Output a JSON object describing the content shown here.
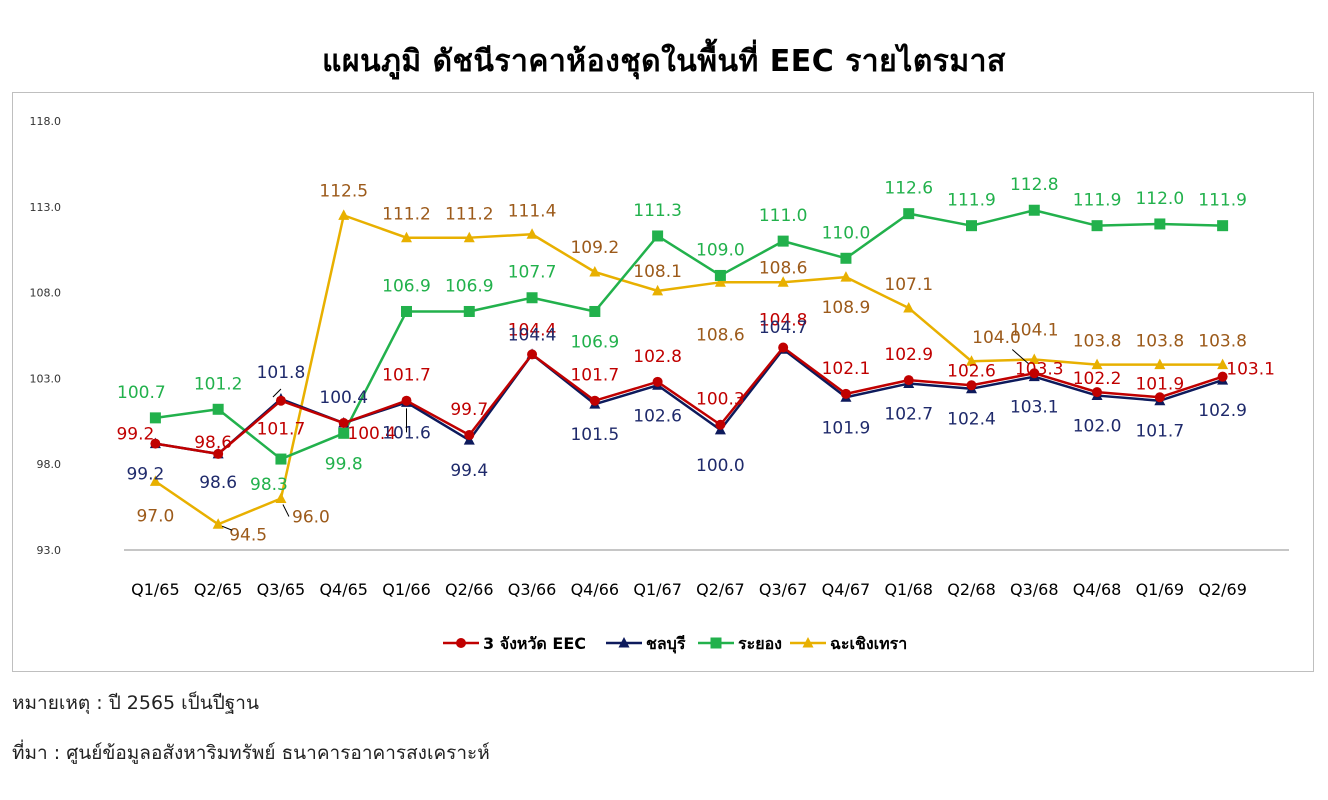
{
  "title": "แผนภูมิ ดัชนีราคาห้องชุดในพื้นที่ EEC รายไตรมาส",
  "note": "หมายเหตุ : ปี 2565 เป็นปีฐาน",
  "source": "ที่มา : ศูนย์ข้อมูลอสังหาริมทรัพย์ ธนาคารอาคารสงเคราะห์",
  "chart_data": {
    "type": "line",
    "title": "แผนภูมิ ดัชนีราคาห้องชุดในพื้นที่ EEC รายไตรมาส",
    "xlabel": "",
    "ylabel": "",
    "ylim": [
      93.0,
      118.0
    ],
    "yticks": [
      "93.0",
      "98.0",
      "103.0",
      "108.0",
      "113.0",
      "118.0"
    ],
    "grid": false,
    "legend_position": "bottom",
    "categories": [
      "Q1/65",
      "Q2/65",
      "Q3/65",
      "Q4/65",
      "Q1/66",
      "Q2/66",
      "Q3/66",
      "Q4/66",
      "Q1/67",
      "Q2/67",
      "Q3/67",
      "Q4/67",
      "Q1/68",
      "Q2/68",
      "Q3/68",
      "Q4/68",
      "Q1/69",
      "Q2/69"
    ],
    "series": [
      {
        "name": "3 จังหวัด EEC",
        "color": "#c00000",
        "label_color": "#c00000",
        "marker": "circle",
        "values": [
          99.2,
          98.6,
          101.7,
          100.4,
          101.7,
          99.7,
          104.4,
          101.7,
          102.8,
          100.3,
          104.8,
          102.1,
          102.9,
          102.6,
          103.3,
          102.2,
          101.9,
          103.1
        ]
      },
      {
        "name": "ชลบุรี",
        "color": "#0d1a5c",
        "label_color": "#1f2a6b",
        "marker": "triangle",
        "values": [
          99.2,
          98.6,
          101.8,
          100.4,
          101.6,
          99.4,
          104.4,
          101.5,
          102.6,
          100.0,
          104.7,
          101.9,
          102.7,
          102.4,
          103.1,
          102.0,
          101.7,
          102.9
        ]
      },
      {
        "name": "ระยอง",
        "color": "#22b14c",
        "label_color": "#22b14c",
        "marker": "square",
        "values": [
          100.7,
          101.2,
          98.3,
          99.8,
          106.9,
          106.9,
          107.7,
          106.9,
          111.3,
          109.0,
          111.0,
          110.0,
          112.6,
          111.9,
          112.8,
          111.9,
          112.0,
          111.9
        ]
      },
      {
        "name": "ฉะเชิงเทรา",
        "color": "#e8b000",
        "label_color": "#9c5a1a",
        "marker": "triangle",
        "values": [
          97.0,
          94.5,
          96.0,
          112.5,
          111.2,
          111.2,
          111.4,
          109.2,
          108.1,
          108.6,
          108.6,
          108.9,
          107.1,
          104.0,
          104.1,
          103.8,
          103.8,
          103.8
        ]
      }
    ]
  }
}
